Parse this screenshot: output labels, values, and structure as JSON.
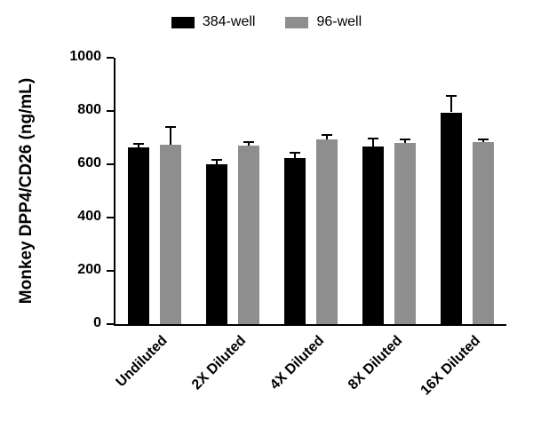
{
  "chart_data": {
    "type": "bar",
    "title": "",
    "xlabel": "",
    "ylabel": "Monkey DPP4/CD26 (ng/mL)",
    "categories": [
      "Undiluted",
      "2X Diluted",
      "4X Diluted",
      "8X Diluted",
      "16X Diluted"
    ],
    "series": [
      {
        "name": "384-well",
        "color": "#000000",
        "values": [
          665,
          600,
          622,
          668,
          795
        ],
        "errors": [
          10,
          14,
          18,
          25,
          58
        ]
      },
      {
        "name": "96-well",
        "color": "#8e8e8e",
        "values": [
          672,
          670,
          693,
          680,
          682
        ],
        "errors": [
          66,
          10,
          14,
          11,
          7
        ]
      }
    ],
    "ylim": [
      0,
      1000
    ],
    "yticks": [
      0,
      200,
      400,
      600,
      800,
      1000
    ],
    "grid": false,
    "legend_position": "top-center",
    "error_bar_color": "#000000"
  }
}
